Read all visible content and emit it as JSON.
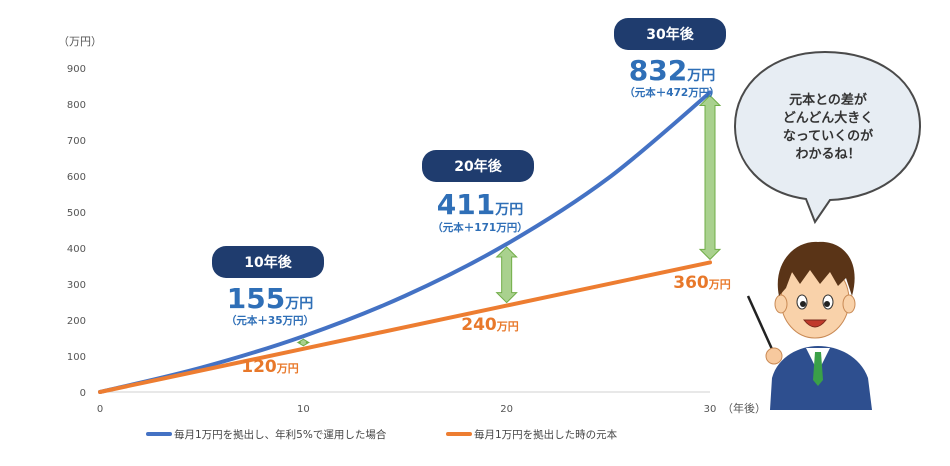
{
  "chart_data": {
    "type": "line",
    "y_unit": "（万円）",
    "x_unit": "（年後）",
    "x_ticks": [
      "0",
      "10",
      "20",
      "30"
    ],
    "y_ticks": [
      "0",
      "100",
      "200",
      "300",
      "400",
      "500",
      "600",
      "700",
      "800",
      "900"
    ],
    "xlim": [
      0,
      30
    ],
    "ylim": [
      0,
      900
    ],
    "grid": false,
    "series": [
      {
        "name": "毎月1万円を拠出し、年利5%で運用した場合",
        "color": "#4472c4",
        "x": [
          0,
          5,
          10,
          15,
          20,
          25,
          30
        ],
        "y": [
          0,
          68,
          155,
          267,
          411,
          594,
          832
        ]
      },
      {
        "name": "毎月1万円を拠出した時の元本",
        "color": "#ed7d31",
        "x": [
          0,
          10,
          20,
          30
        ],
        "y": [
          0,
          120,
          240,
          360
        ]
      }
    ],
    "annotations": [
      {
        "x": 10,
        "period": "10年後",
        "value": "155",
        "unit": "万円",
        "detail": "（元本＋35万円）",
        "principal": "120",
        "principal_unit": "万円"
      },
      {
        "x": 20,
        "period": "20年後",
        "value": "411",
        "unit": "万円",
        "detail": "（元本＋171万円）",
        "principal": "240",
        "principal_unit": "万円"
      },
      {
        "x": 30,
        "period": "30年後",
        "value": "832",
        "unit": "万円",
        "detail": "（元本＋472万円）",
        "principal": "360",
        "principal_unit": "万円"
      }
    ]
  },
  "bubble": {
    "lines": [
      "元本との差が",
      "どんどん大きく",
      "なっていくのが",
      "わかるね！"
    ]
  },
  "colors": {
    "pill": "#1f3c6e",
    "arrow": "#a9d18e",
    "arrow_stroke": "#70ad47"
  }
}
